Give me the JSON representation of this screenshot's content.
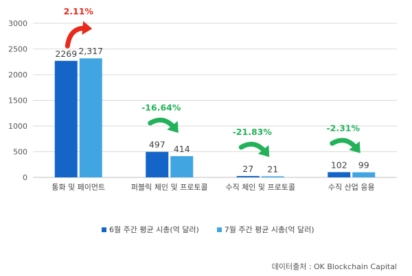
{
  "chart_data": {
    "type": "bar",
    "categories": [
      "통화 및 페이먼트",
      "퍼블릭 체인 및 프로토콜",
      "수직 체인 및 프로토콜",
      "수직 산업 응용"
    ],
    "series": [
      {
        "name": "6월 주간 평균 시총(억 달러)",
        "values": [
          2269,
          497,
          27,
          102
        ],
        "labels": [
          "2269",
          "497",
          "27",
          "102"
        ],
        "color": "#1565c8"
      },
      {
        "name": "7월 주간 평균 시총(억 달러)",
        "values": [
          2317,
          414,
          21,
          99
        ],
        "labels": [
          "2,317",
          "414",
          "21",
          "99"
        ],
        "color": "#41a5e1"
      }
    ],
    "changes": [
      {
        "label": "2.11%",
        "direction": "up",
        "color": "#e8291c"
      },
      {
        "label": "-16.64%",
        "direction": "down",
        "color": "#23b25a"
      },
      {
        "label": "-21.83%",
        "direction": "down",
        "color": "#23b25a"
      },
      {
        "label": "-2.31%",
        "direction": "down",
        "color": "#23b25a"
      }
    ],
    "ylim": [
      0,
      3000
    ],
    "yticks": [
      0,
      500,
      1000,
      1500,
      2000,
      2500,
      3000
    ],
    "grid": true,
    "legend_position": "bottom"
  },
  "source_text": "데이터출처 :   OK Blockchain Capital"
}
